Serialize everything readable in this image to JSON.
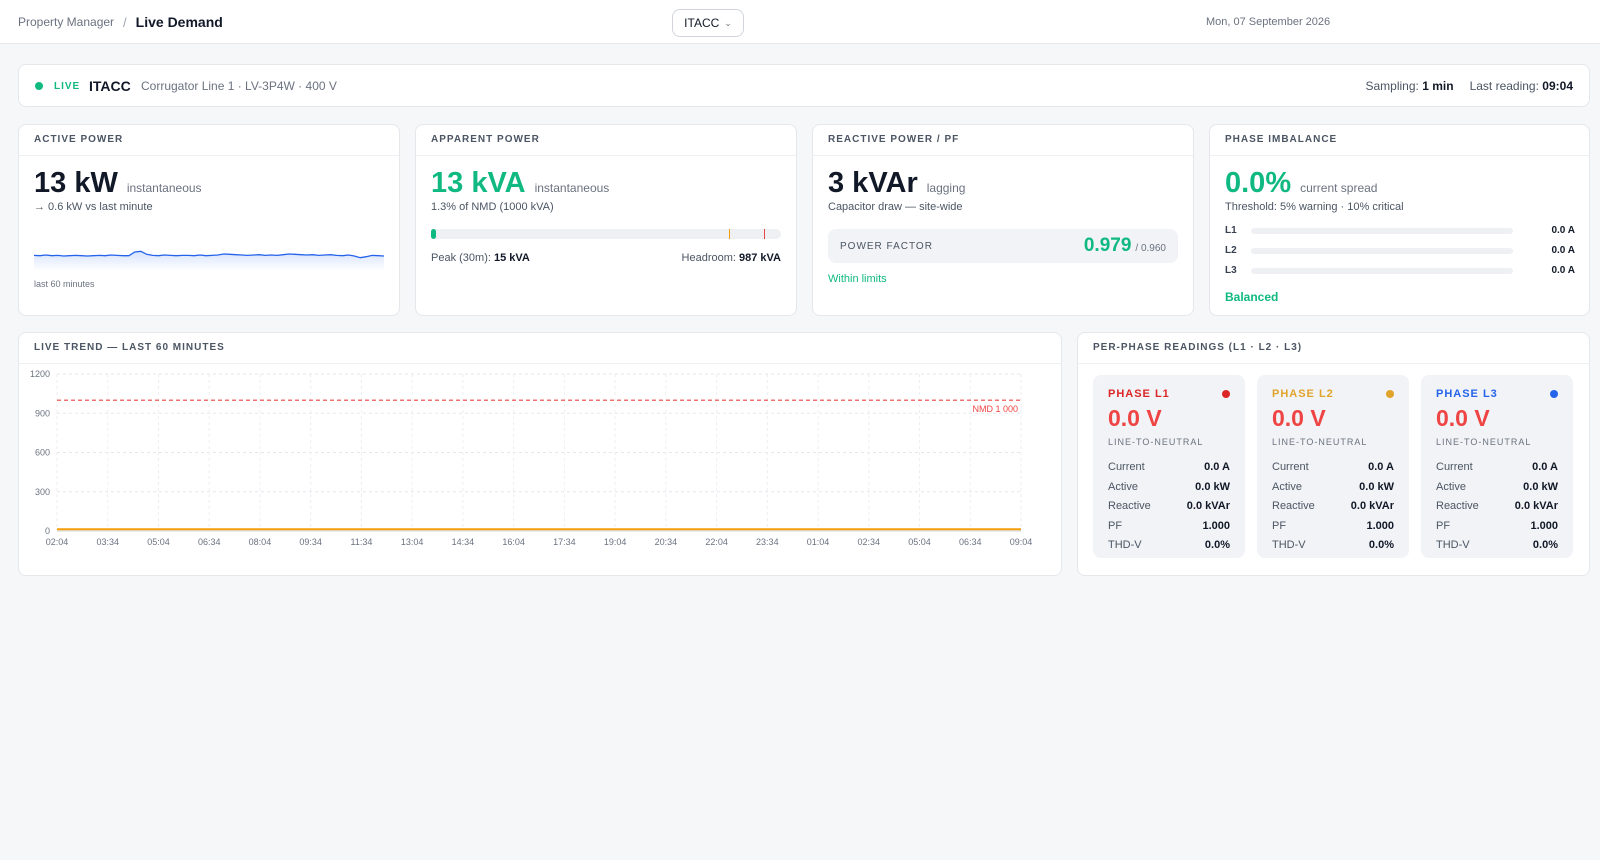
{
  "header": {
    "breadcrumb_parent": "Property Manager",
    "breadcrumb_separator": "/",
    "breadcrumb_current": "Live Demand",
    "site_select": "ITACC",
    "date": "Mon, 07 September 2026"
  },
  "live": {
    "tag": "LIVE",
    "site": "ITACC",
    "description": "Corrugator Line 1 · LV-3P4W · 400 V",
    "sampling_label": "Sampling:",
    "sampling_value": "1 min",
    "last_reading_label": "Last reading:",
    "last_reading_value": "09:04"
  },
  "active_power": {
    "title": "ACTIVE POWER",
    "value": "13 kW",
    "unit_label": "instantaneous",
    "delta": "→ 0.6 kW vs last minute",
    "spark_label": "last 60 minutes",
    "spark_values": [
      12.6,
      12.5,
      12.7,
      12.5,
      12.6,
      12.4,
      12.5,
      12.6,
      12.5,
      12.4,
      12.5,
      12.6,
      12.5,
      12.7,
      12.6,
      12.5,
      12.5,
      13.6,
      13.8,
      12.9,
      12.6,
      12.5,
      12.7,
      12.6,
      12.5,
      12.6,
      12.6,
      12.5,
      12.7,
      12.5,
      12.6,
      12.7,
      13.0,
      12.9,
      12.8,
      12.7,
      12.6,
      12.7,
      12.8,
      12.6,
      12.7,
      12.6,
      12.8,
      13.0,
      12.9,
      12.8,
      12.7,
      12.8,
      12.6,
      12.7,
      12.8,
      12.6,
      12.5,
      12.7,
      12.4,
      11.9,
      12.2,
      12.6,
      12.5,
      12.4
    ],
    "color": "#2563eb"
  },
  "apparent_power": {
    "title": "APPARENT POWER",
    "value": "13 kVA",
    "unit_label": "instantaneous",
    "sub": "1.3% of NMD (1000 kVA)",
    "fill_fraction": 0.013,
    "warning_fraction": 0.85,
    "critical_fraction": 0.95,
    "peak_label": "Peak (30m):",
    "peak_value": "15 kVA",
    "headroom_label": "Headroom:",
    "headroom_value": "987 kVA"
  },
  "reactive_power": {
    "title": "REACTIVE POWER / PF",
    "value": "3 kVAr",
    "unit_label": "lagging",
    "sub": "Capacitor draw — site-wide",
    "pf_label": "POWER FACTOR",
    "pf_value": "0.979",
    "pf_target": "/ 0.960",
    "status": "Within limits"
  },
  "phase_imbalance": {
    "title": "PHASE IMBALANCE",
    "value": "0.0%",
    "unit_label": "current spread",
    "sub": "Threshold: 5% warning · 10% critical",
    "rows": [
      {
        "name": "L1",
        "value": "0.0 A",
        "fraction": 0
      },
      {
        "name": "L2",
        "value": "0.0 A",
        "fraction": 0
      },
      {
        "name": "L3",
        "value": "0.0 A",
        "fraction": 0
      }
    ],
    "status": "Balanced"
  },
  "trend": {
    "title": "LIVE TREND — LAST 60 MINUTES",
    "nmd_label": "NMD 1 000",
    "colors": {
      "line": "#f59e0b",
      "nmd": "#ef4444"
    }
  },
  "chart_data": {
    "type": "line",
    "x": [
      "02:04",
      "03:34",
      "05:04",
      "06:34",
      "08:04",
      "09:34",
      "11:34",
      "13:04",
      "14:34",
      "16:04",
      "17:34",
      "19:04",
      "20:34",
      "22:04",
      "23:34",
      "01:04",
      "02:34",
      "05:04",
      "06:34",
      "09:04"
    ],
    "series": [
      {
        "values": [
          13,
          13,
          13,
          13,
          13,
          13,
          13,
          13,
          13,
          13,
          13,
          13,
          13,
          13,
          13,
          13,
          13,
          13,
          13,
          13
        ]
      }
    ],
    "y_ticks": [
      0,
      300,
      600,
      900,
      1200
    ],
    "ylim": [
      0,
      1200
    ],
    "reference_line": {
      "value": 1000,
      "label": "NMD 1 000"
    },
    "grid": true
  },
  "phases": {
    "title": "PER-PHASE READINGS (L1 · L2 · L3)",
    "items": [
      {
        "name": "PHASE L1",
        "color": "#dc2626",
        "voltage": "0.0 V",
        "voltage_label": "LINE-TO-NEUTRAL",
        "rows": [
          {
            "k": "Current",
            "v": "0.0 A"
          },
          {
            "k": "Active",
            "v": "0.0 kW"
          },
          {
            "k": "Reactive",
            "v": "0.0 kVAr"
          },
          {
            "k": "PF",
            "v": "1.000"
          },
          {
            "k": "THD-V",
            "v": "0.0%"
          }
        ]
      },
      {
        "name": "PHASE L2",
        "color": "#e2a32b",
        "voltage": "0.0 V",
        "voltage_label": "LINE-TO-NEUTRAL",
        "rows": [
          {
            "k": "Current",
            "v": "0.0 A"
          },
          {
            "k": "Active",
            "v": "0.0 kW"
          },
          {
            "k": "Reactive",
            "v": "0.0 kVAr"
          },
          {
            "k": "PF",
            "v": "1.000"
          },
          {
            "k": "THD-V",
            "v": "0.0%"
          }
        ]
      },
      {
        "name": "PHASE L3",
        "color": "#2563eb",
        "voltage": "0.0 V",
        "voltage_label": "LINE-TO-NEUTRAL",
        "rows": [
          {
            "k": "Current",
            "v": "0.0 A"
          },
          {
            "k": "Active",
            "v": "0.0 kW"
          },
          {
            "k": "Reactive",
            "v": "0.0 kVAr"
          },
          {
            "k": "PF",
            "v": "1.000"
          },
          {
            "k": "THD-V",
            "v": "0.0%"
          }
        ]
      }
    ]
  }
}
